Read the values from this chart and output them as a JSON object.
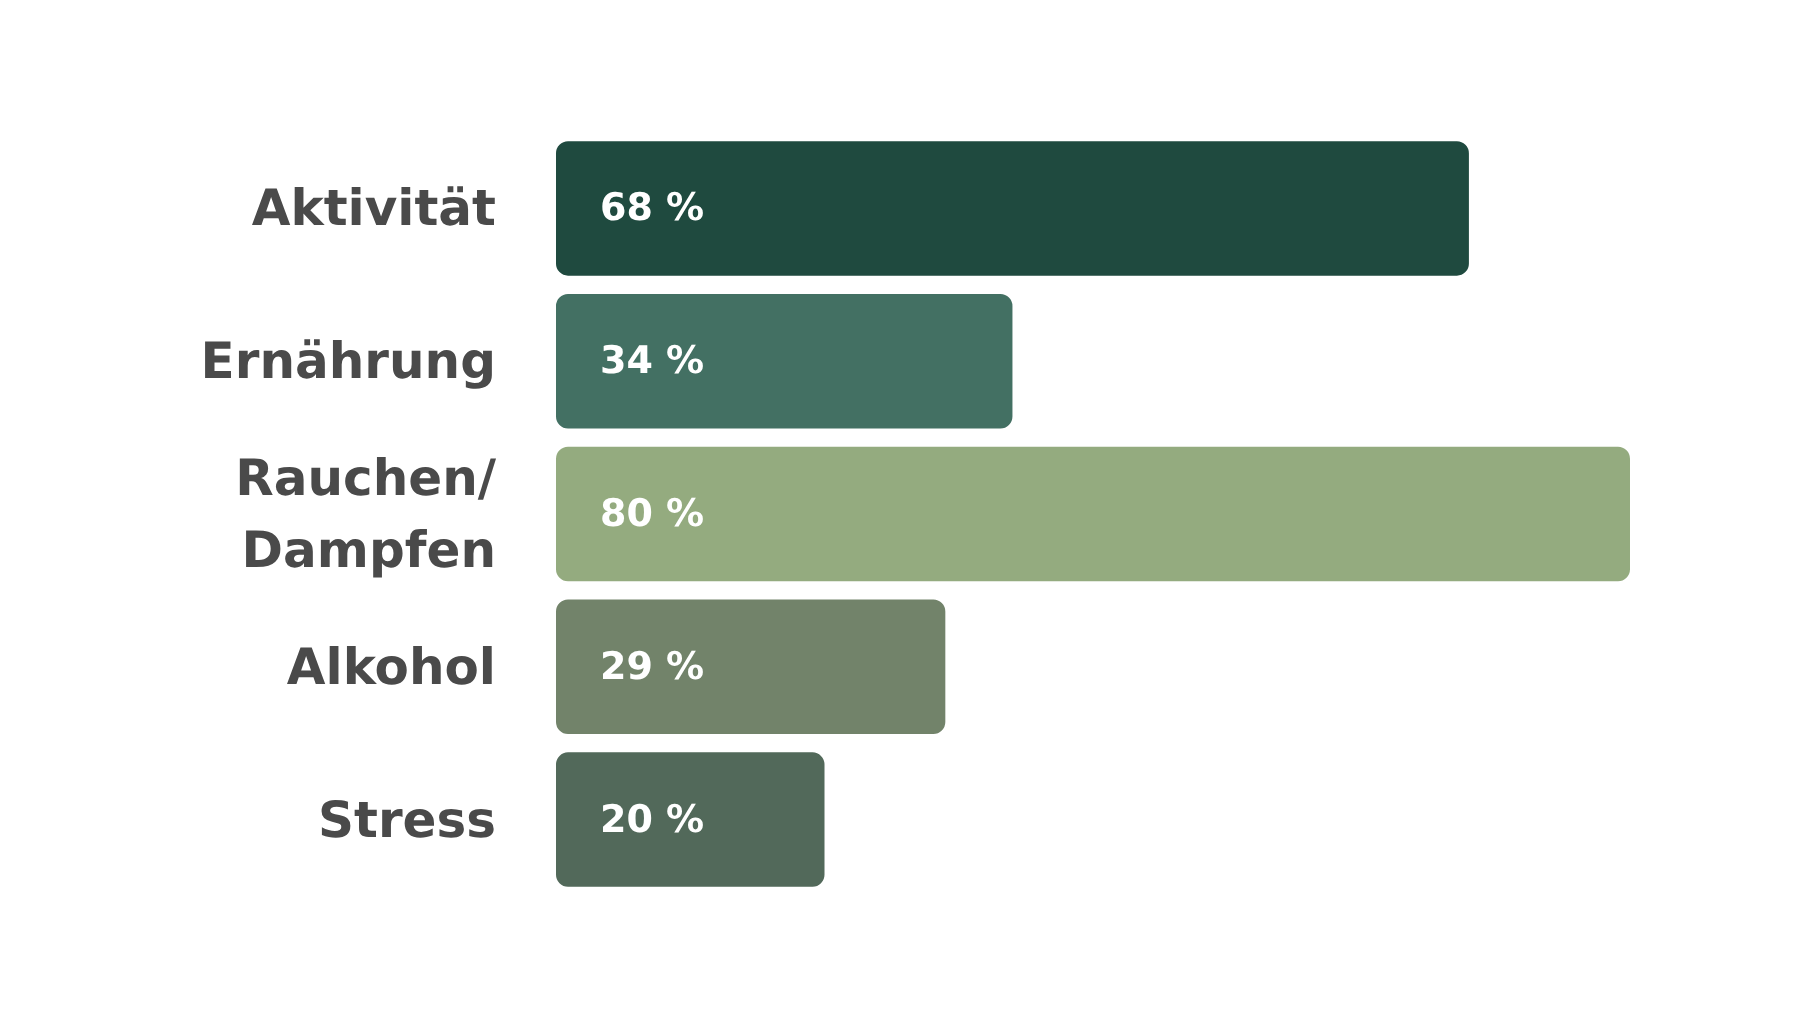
{
  "chart_data": {
    "type": "bar",
    "orientation": "horizontal",
    "categories": [
      "Aktivität",
      "Ernährung",
      "Rauchen/\nDampfen",
      "Alkohol",
      "Stress"
    ],
    "values": [
      68,
      34,
      80,
      29,
      20
    ],
    "colors": [
      "#1f4a3f",
      "#437063",
      "#94ab7f",
      "#72836a",
      "#52695a"
    ],
    "value_labels": [
      "68 %",
      "34 %",
      "80 %",
      "29 %",
      "20 %"
    ],
    "tick_labels": "y"
  }
}
